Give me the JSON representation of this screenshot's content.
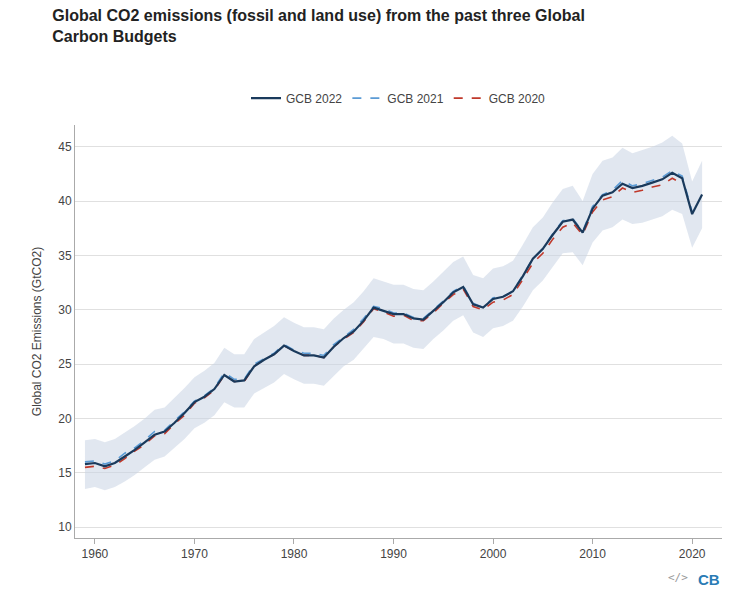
{
  "chart_data": {
    "type": "line",
    "title": "Global CO2 emissions (fossil and land use) from the past three Global\nCarbon Budgets",
    "ylabel": "Global CO2 Emissions (GtCO2)",
    "xlim": [
      1958,
      2023
    ],
    "ylim": [
      9,
      47
    ],
    "xticks": [
      1960,
      1970,
      1980,
      1990,
      2000,
      2010,
      2020
    ],
    "yticks": [
      10,
      15,
      20,
      25,
      30,
      35,
      40,
      45
    ],
    "grid": "y",
    "legend": "top",
    "annotations": [
      "</>",
      "CB"
    ],
    "band": {
      "color": "#c8d4e3",
      "x": [
        1959,
        1960,
        1961,
        1962,
        1963,
        1964,
        1965,
        1966,
        1967,
        1968,
        1969,
        1970,
        1971,
        1972,
        1973,
        1974,
        1975,
        1976,
        1977,
        1978,
        1979,
        1980,
        1981,
        1982,
        1983,
        1984,
        1985,
        1986,
        1987,
        1988,
        1989,
        1990,
        1991,
        1992,
        1993,
        1994,
        1995,
        1996,
        1997,
        1998,
        1999,
        2000,
        2001,
        2002,
        2003,
        2004,
        2005,
        2006,
        2007,
        2008,
        2009,
        2010,
        2011,
        2012,
        2013,
        2014,
        2015,
        2016,
        2017,
        2018,
        2019,
        2020,
        2021
      ],
      "upper": [
        18.0,
        18.1,
        17.8,
        18.1,
        18.7,
        19.3,
        20.0,
        20.8,
        21.0,
        21.9,
        22.8,
        23.8,
        24.4,
        25.1,
        26.5,
        25.9,
        25.9,
        27.3,
        27.9,
        28.5,
        29.3,
        28.8,
        28.4,
        28.4,
        28.2,
        29.2,
        30.0,
        30.7,
        31.7,
        32.9,
        32.6,
        32.3,
        32.3,
        31.9,
        31.8,
        32.6,
        33.5,
        34.4,
        34.9,
        33.2,
        32.9,
        33.8,
        34.0,
        34.5,
        36.0,
        37.6,
        38.5,
        39.9,
        41.1,
        41.4,
        40.0,
        42.5,
        43.7,
        44.0,
        44.9,
        44.4,
        44.7,
        45.0,
        45.4,
        46.0,
        45.3,
        41.8,
        43.7
      ],
      "lower": [
        13.5,
        13.7,
        13.4,
        13.7,
        14.2,
        14.8,
        15.5,
        16.2,
        16.5,
        17.3,
        18.1,
        19.1,
        19.6,
        20.3,
        21.5,
        21.0,
        21.0,
        22.3,
        22.8,
        23.3,
        24.1,
        23.6,
        23.2,
        23.2,
        23.0,
        23.9,
        24.8,
        25.4,
        26.4,
        27.5,
        27.3,
        26.9,
        26.9,
        26.5,
        26.4,
        27.3,
        28.1,
        29.0,
        29.5,
        27.9,
        27.5,
        28.3,
        28.5,
        29.0,
        30.3,
        31.8,
        32.7,
        34.0,
        35.2,
        35.3,
        34.1,
        36.2,
        37.3,
        37.6,
        38.3,
        37.9,
        38.0,
        38.3,
        38.6,
        39.2,
        38.8,
        35.7,
        37.5
      ]
    },
    "series": [
      {
        "name": "GCB 2020",
        "color": "#c0392b",
        "line_style": "dashed",
        "x": [
          1959,
          1960,
          1961,
          1962,
          1963,
          1964,
          1965,
          1966,
          1967,
          1968,
          1969,
          1970,
          1971,
          1972,
          1973,
          1974,
          1975,
          1976,
          1977,
          1978,
          1979,
          1980,
          1981,
          1982,
          1983,
          1984,
          1985,
          1986,
          1987,
          1988,
          1989,
          1990,
          1991,
          1992,
          1993,
          1994,
          1995,
          1996,
          1997,
          1998,
          1999,
          2000,
          2001,
          2002,
          2003,
          2004,
          2005,
          2006,
          2007,
          2008,
          2009,
          2010,
          2011,
          2012,
          2013,
          2014,
          2015,
          2016,
          2017,
          2018,
          2019
        ],
        "values": [
          15.5,
          15.6,
          15.4,
          15.7,
          16.3,
          17.0,
          17.6,
          18.4,
          18.6,
          19.5,
          20.3,
          21.4,
          21.9,
          22.6,
          24.0,
          23.4,
          23.4,
          24.8,
          25.4,
          25.9,
          26.7,
          26.2,
          25.8,
          25.8,
          25.6,
          26.6,
          27.3,
          27.9,
          28.9,
          30.1,
          29.8,
          29.4,
          29.5,
          29.0,
          29.0,
          29.7,
          30.6,
          31.4,
          31.9,
          30.3,
          30.0,
          30.7,
          30.9,
          31.4,
          32.8,
          34.3,
          35.2,
          36.5,
          37.6,
          38.0,
          36.9,
          39.0,
          40.1,
          40.4,
          41.2,
          40.8,
          41.0,
          41.3,
          41.5,
          42.1,
          41.6
        ]
      },
      {
        "name": "GCB 2021",
        "color": "#5b9bd5",
        "line_style": "dashed",
        "x": [
          1959,
          1960,
          1961,
          1962,
          1963,
          1964,
          1965,
          1966,
          1967,
          1968,
          1969,
          1970,
          1971,
          1972,
          1973,
          1974,
          1975,
          1976,
          1977,
          1978,
          1979,
          1980,
          1981,
          1982,
          1983,
          1984,
          1985,
          1986,
          1987,
          1988,
          1989,
          1990,
          1991,
          1992,
          1993,
          1994,
          1995,
          1996,
          1997,
          1998,
          1999,
          2000,
          2001,
          2002,
          2003,
          2004,
          2005,
          2006,
          2007,
          2008,
          2009,
          2010,
          2011,
          2012,
          2013,
          2014,
          2015,
          2016,
          2017,
          2018,
          2019,
          2020
        ],
        "values": [
          16.0,
          16.1,
          15.8,
          16.1,
          16.8,
          17.3,
          18.0,
          18.8,
          18.9,
          19.8,
          20.6,
          21.6,
          22.1,
          22.8,
          24.2,
          23.6,
          23.6,
          25.0,
          25.5,
          26.0,
          26.8,
          26.3,
          26.0,
          26.0,
          25.8,
          26.8,
          27.5,
          28.2,
          29.2,
          30.3,
          30.1,
          29.7,
          29.7,
          29.3,
          29.2,
          30.0,
          30.8,
          31.7,
          32.2,
          30.6,
          30.2,
          31.1,
          31.2,
          31.7,
          33.2,
          34.7,
          35.6,
          37.0,
          38.2,
          38.4,
          37.2,
          39.5,
          40.6,
          41.0,
          41.9,
          41.4,
          41.6,
          41.9,
          42.2,
          42.8,
          42.3,
          39.0
        ]
      },
      {
        "name": "GCB 2022",
        "color": "#1a3a5c",
        "line_style": "solid",
        "x": [
          1959,
          1960,
          1961,
          1962,
          1963,
          1964,
          1965,
          1966,
          1967,
          1968,
          1969,
          1970,
          1971,
          1972,
          1973,
          1974,
          1975,
          1976,
          1977,
          1978,
          1979,
          1980,
          1981,
          1982,
          1983,
          1984,
          1985,
          1986,
          1987,
          1988,
          1989,
          1990,
          1991,
          1992,
          1993,
          1994,
          1995,
          1996,
          1997,
          1998,
          1999,
          2000,
          2001,
          2002,
          2003,
          2004,
          2005,
          2006,
          2007,
          2008,
          2009,
          2010,
          2011,
          2012,
          2013,
          2014,
          2015,
          2016,
          2017,
          2018,
          2019,
          2020,
          2021
        ],
        "values": [
          15.8,
          15.9,
          15.6,
          15.9,
          16.5,
          17.1,
          17.8,
          18.5,
          18.8,
          19.6,
          20.5,
          21.5,
          22.0,
          22.7,
          24.0,
          23.4,
          23.5,
          24.8,
          25.4,
          25.9,
          26.7,
          26.2,
          25.8,
          25.8,
          25.6,
          26.6,
          27.4,
          28.0,
          29.0,
          30.2,
          29.9,
          29.6,
          29.6,
          29.2,
          29.1,
          29.9,
          30.7,
          31.6,
          32.1,
          30.5,
          30.2,
          31.0,
          31.2,
          31.7,
          33.1,
          34.7,
          35.6,
          36.9,
          38.1,
          38.3,
          37.1,
          39.3,
          40.5,
          40.8,
          41.6,
          41.2,
          41.4,
          41.7,
          42.0,
          42.6,
          42.1,
          38.8,
          40.6
        ]
      }
    ]
  }
}
